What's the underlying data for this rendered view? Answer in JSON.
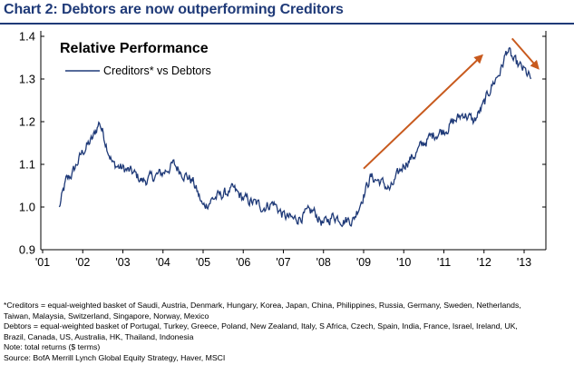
{
  "title": "Chart 2: Debtors are now outperforming Creditors",
  "chart_data": {
    "type": "line",
    "chart_title": "Relative Performance",
    "legend_entry": "Creditors* vs Debtors",
    "legend_placement": "top-left",
    "grid": false,
    "line_color": "#1f3a78",
    "arrow_color": "#c85a1e",
    "ylim": [
      0.9,
      1.4
    ],
    "y_ticks": [
      "0.9",
      "1.0",
      "1.1",
      "1.2",
      "1.3",
      "1.4"
    ],
    "x_ticks": [
      "'01",
      "'02",
      "'03",
      "'04",
      "'05",
      "'06",
      "'07",
      "'08",
      "'09",
      "'10",
      "'11",
      "'12",
      "'13"
    ],
    "series": [
      {
        "x": [
          "2001-06",
          "2001-08",
          "2001-10",
          "2002-01",
          "2002-04",
          "2002-06",
          "2002-08",
          "2002-10",
          "2003-01",
          "2003-04",
          "2003-07",
          "2003-10",
          "2004-01",
          "2004-04",
          "2004-07",
          "2004-10",
          "2005-01",
          "2005-04",
          "2005-07",
          "2005-10",
          "2006-01",
          "2006-04",
          "2006-07",
          "2006-10",
          "2007-01",
          "2007-04",
          "2007-07",
          "2007-10",
          "2008-01",
          "2008-04",
          "2008-07",
          "2008-10",
          "2009-01",
          "2009-03",
          "2009-06",
          "2009-09",
          "2010-01",
          "2010-04",
          "2010-07",
          "2010-10",
          "2011-01",
          "2011-04",
          "2011-07",
          "2011-10",
          "2012-01",
          "2012-03",
          "2012-06",
          "2012-08",
          "2012-10",
          "2013-01",
          "2013-03"
        ],
        "y": [
          1.0,
          1.06,
          1.08,
          1.13,
          1.16,
          1.2,
          1.15,
          1.1,
          1.09,
          1.08,
          1.06,
          1.07,
          1.08,
          1.1,
          1.08,
          1.06,
          1.0,
          1.02,
          1.03,
          1.04,
          1.02,
          1.01,
          1.0,
          1.01,
          0.98,
          0.97,
          0.98,
          0.99,
          0.96,
          0.98,
          0.97,
          0.97,
          1.03,
          1.07,
          1.06,
          1.04,
          1.1,
          1.12,
          1.15,
          1.17,
          1.18,
          1.2,
          1.22,
          1.2,
          1.24,
          1.28,
          1.32,
          1.37,
          1.34,
          1.32,
          1.3
        ]
      }
    ],
    "annotations": [
      "rising arrow from '09 to '12",
      "falling arrow after '12 peak"
    ]
  },
  "notes": [
    "*Creditors = equal-weighted basket of Saudi, Austria, Denmark, Hungary, Korea, Japan, China, Philippines, Russia, Germany, Sweden, Netherlands,",
    "Taiwan, Malaysia, Switzerland, Singapore, Norway, Mexico",
    "Debtors = equal-weighted basket of Portugal, Turkey, Greece, Poland, New Zealand, Italy, S Africa, Czech, Spain, India, France, Israel, Ireland, UK,",
    "Brazil, Canada, US, Australia, HK, Thailand, Indonesia",
    "Note: total returns ($ terms)",
    "Source: BofA Merrill Lynch Global Equity Strategy, Haver, MSCI"
  ]
}
